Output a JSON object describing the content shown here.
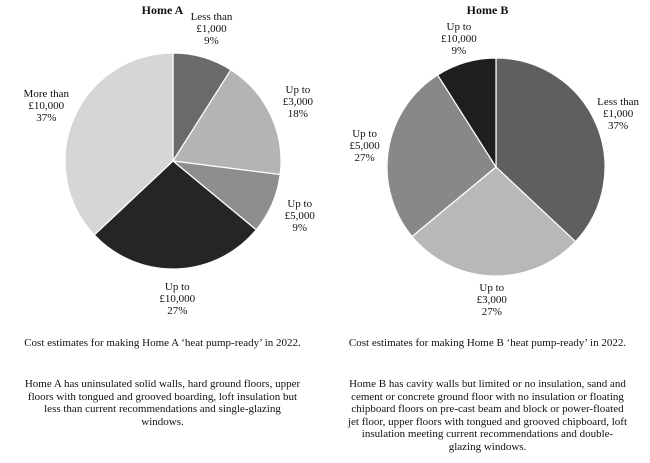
{
  "chart_data": [
    {
      "type": "pie",
      "title": "Home A",
      "slices": [
        {
          "label": [
            "Less than",
            "£1,000"
          ],
          "percent_label": "9%",
          "value": 9,
          "color": "#6a6a6a"
        },
        {
          "label": [
            "Up to",
            "£3,000"
          ],
          "percent_label": "18%",
          "value": 18,
          "color": "#b4b4b4"
        },
        {
          "label": [
            "Up to",
            "£5,000"
          ],
          "percent_label": "9%",
          "value": 9,
          "color": "#8e8e8e"
        },
        {
          "label": [
            "Up to",
            "£10,000"
          ],
          "percent_label": "27%",
          "value": 27,
          "color": "#252525"
        },
        {
          "label": [
            "More than",
            "£10,000"
          ],
          "percent_label": "37%",
          "value": 37,
          "color": "#d6d6d6"
        }
      ],
      "caption": "Cost estimates for making Home A ‘heat pump-ready’ in 2022.",
      "description": "Home A has uninsulated solid walls, hard ground floors, upper floors with tongued and grooved boarding, loft insulation but less than current recommendations and single-glazing windows."
    },
    {
      "type": "pie",
      "title": "Home B",
      "slices": [
        {
          "label": [
            "Less than",
            "£1,000"
          ],
          "percent_label": "37%",
          "value": 37,
          "color": "#5f5f5f"
        },
        {
          "label": [
            "Up to",
            "£3,000"
          ],
          "percent_label": "27%",
          "value": 27,
          "color": "#b8b8b8"
        },
        {
          "label": [
            "Up to",
            "£5,000"
          ],
          "percent_label": "27%",
          "value": 27,
          "color": "#888888"
        },
        {
          "label": [
            "Up to",
            "£10,000"
          ],
          "percent_label": "9%",
          "value": 9,
          "color": "#1e1e1e"
        }
      ],
      "caption": "Cost estimates for making Home B ‘heat pump-ready’ in 2022.",
      "description": "Home B has cavity walls but limited or no insulation, sand and cement or concrete ground floor with no insulation or floating chipboard floors on pre-cast beam and block or power-floated jet floor, upper floors with tongued and grooved chipboard, loft insulation meeting current recommendations and double-glazing windows."
    }
  ]
}
